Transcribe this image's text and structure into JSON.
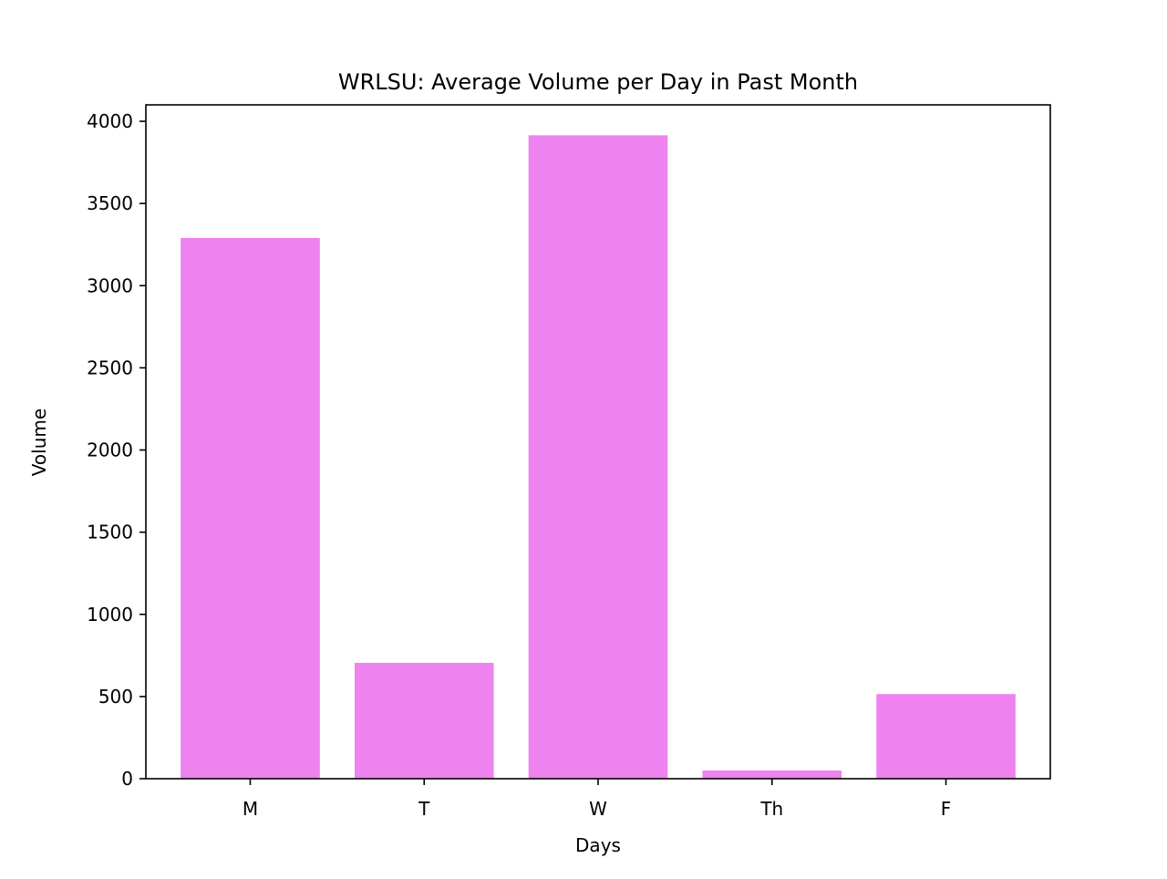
{
  "chart_data": {
    "type": "bar",
    "title": "WRLSU: Average Volume per Day in Past Month",
    "xlabel": "Days",
    "ylabel": "Volume",
    "categories": [
      "M",
      "T",
      "W",
      "Th",
      "F"
    ],
    "values": [
      3290,
      705,
      3915,
      50,
      515
    ],
    "ylim": [
      0,
      4100
    ],
    "yticks": [
      0,
      500,
      1000,
      1500,
      2000,
      2500,
      3000,
      3500,
      4000
    ],
    "bar_color": "#ee82ee",
    "grid": false,
    "legend": "none"
  }
}
